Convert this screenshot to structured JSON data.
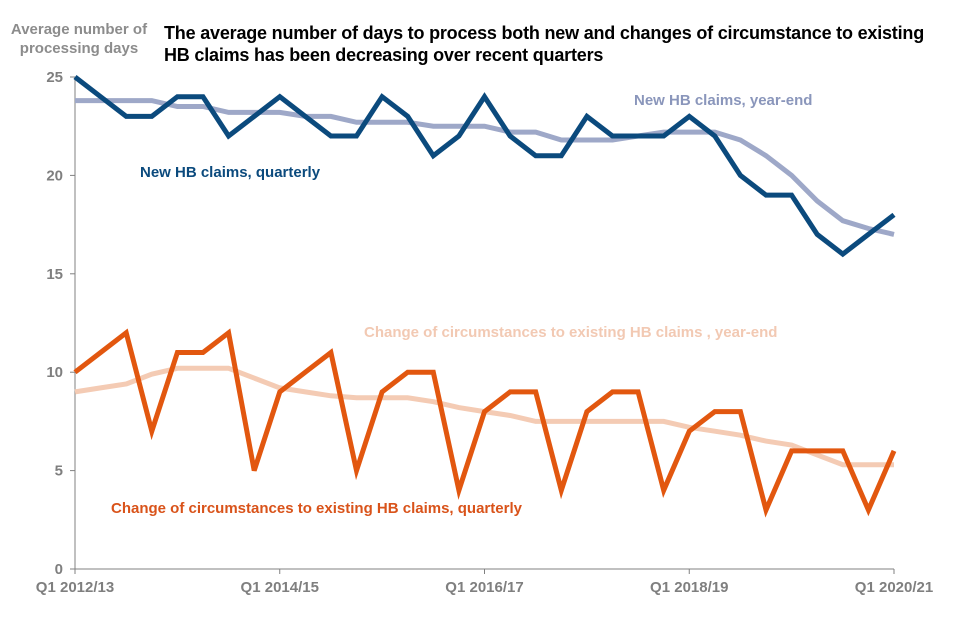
{
  "chart_data": {
    "type": "line",
    "title": "The average number of days to process both new and changes of circumstance to existing HB claims has been decreasing over recent quarters",
    "ylabel": "Average number of processing days",
    "xlabel": "",
    "ylim": [
      0,
      25
    ],
    "yticks": [
      0,
      5,
      10,
      15,
      20,
      25
    ],
    "grid": false,
    "x": [
      "Q1 2012/13",
      "Q2 2012/13",
      "Q3 2012/13",
      "Q4 2012/13",
      "Q1 2013/14",
      "Q2 2013/14",
      "Q3 2013/14",
      "Q4 2013/14",
      "Q1 2014/15",
      "Q2 2014/15",
      "Q3 2014/15",
      "Q4 2014/15",
      "Q1 2015/16",
      "Q2 2015/16",
      "Q3 2015/16",
      "Q4 2015/16",
      "Q1 2016/17",
      "Q2 2016/17",
      "Q3 2016/17",
      "Q4 2016/17",
      "Q1 2017/18",
      "Q2 2017/18",
      "Q3 2017/18",
      "Q4 2017/18",
      "Q1 2018/19",
      "Q2 2018/19",
      "Q3 2018/19",
      "Q4 2018/19",
      "Q1 2019/20",
      "Q2 2019/20",
      "Q3 2019/20",
      "Q4 2019/20",
      "Q1 2020/21"
    ],
    "xtick_labels": [
      {
        "index": 0,
        "label": "Q1 2012/13"
      },
      {
        "index": 8,
        "label": "Q1 2014/15"
      },
      {
        "index": 16,
        "label": "Q1 2016/17"
      },
      {
        "index": 24,
        "label": "Q1 2018/19"
      },
      {
        "index": 32,
        "label": "Q1 2020/21"
      }
    ],
    "series": [
      {
        "name": "New HB claims, year-end",
        "color": "#9ea8c8",
        "values": [
          23.8,
          23.8,
          23.8,
          23.8,
          23.5,
          23.5,
          23.2,
          23.2,
          23.2,
          23.0,
          23.0,
          22.7,
          22.7,
          22.7,
          22.5,
          22.5,
          22.5,
          22.2,
          22.2,
          21.8,
          21.8,
          21.8,
          22.0,
          22.2,
          22.2,
          22.2,
          21.8,
          21.0,
          20.0,
          18.7,
          17.7,
          17.3,
          17.0
        ],
        "label": "New HB claims, year-end",
        "label_color": "#8a96bb"
      },
      {
        "name": "New HB claims, quarterly",
        "color": "#0b4a7d",
        "values": [
          25,
          24,
          23,
          23,
          24,
          24,
          22,
          23,
          24,
          23,
          22,
          22,
          24,
          23,
          21,
          22,
          24,
          22,
          21,
          21,
          23,
          22,
          22,
          22,
          23,
          22,
          20,
          19,
          19,
          17,
          16,
          17,
          18
        ],
        "label": "New HB claims, quarterly",
        "label_color": "#0b4a7d"
      },
      {
        "name": "Change of circumstances to existing HB claims , year-end",
        "color": "#f4cbb4",
        "values": [
          9.0,
          9.2,
          9.4,
          9.9,
          10.2,
          10.2,
          10.2,
          9.7,
          9.2,
          9.0,
          8.8,
          8.7,
          8.7,
          8.7,
          8.5,
          8.2,
          8.0,
          7.8,
          7.5,
          7.5,
          7.5,
          7.5,
          7.5,
          7.5,
          7.2,
          7.0,
          6.8,
          6.5,
          6.3,
          5.8,
          5.3,
          5.3,
          5.3
        ],
        "label": "Change of circumstances to existing HB claims , year-end",
        "label_color": "#f2c9b3"
      },
      {
        "name": "Change of circumstances to existing HB claims, quarterly",
        "color": "#e2570f",
        "values": [
          10,
          11,
          12,
          7,
          11,
          11,
          12,
          5,
          9,
          10,
          11,
          5,
          9,
          10,
          10,
          4,
          8,
          9,
          9,
          4,
          8,
          9,
          9,
          4,
          7,
          8,
          8,
          3,
          6,
          6,
          6,
          3,
          6
        ],
        "label": "Change of circumstances to existing HB claims, quarterly",
        "label_color": "#d9531a"
      }
    ],
    "legend": "inline-labels"
  },
  "colors": {
    "axis": "#808080",
    "tick_text": "#7f7f7f"
  }
}
